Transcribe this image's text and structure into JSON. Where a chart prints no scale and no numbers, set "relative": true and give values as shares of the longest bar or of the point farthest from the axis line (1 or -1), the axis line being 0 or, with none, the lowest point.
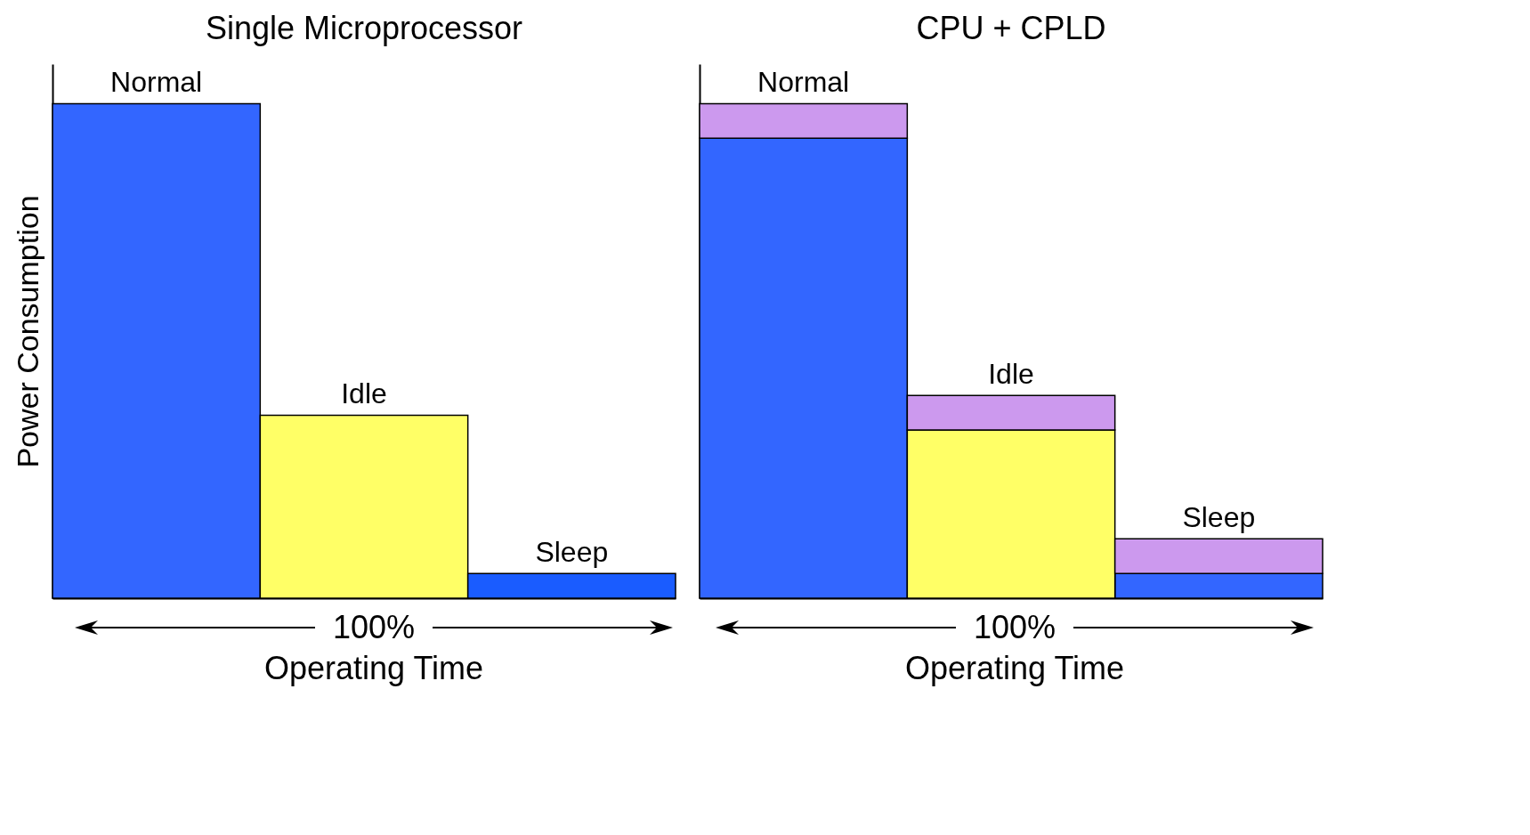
{
  "chart_data": [
    {
      "type": "bar",
      "title": "Single Microprocessor",
      "ylabel": "Power Consumption",
      "xlabel": "Operating Time",
      "relative": true,
      "categories": [
        "Normal",
        "Idle",
        "Sleep"
      ],
      "values": [
        1,
        0.37,
        0.05
      ],
      "colors": [
        "#3366ff",
        "#ffff66",
        "#1a5cff"
      ],
      "annotations": [
        "100%"
      ]
    },
    {
      "type": "bar",
      "title": "CPU + CPLD",
      "xlabel": "Operating Time",
      "relative": true,
      "stacked": true,
      "categories": [
        "Normal",
        "Idle",
        "Sleep"
      ],
      "series": [
        {
          "color": "#3366ff",
          "values": [
            0.93,
            null,
            0.05
          ]
        },
        {
          "color": "#ffff66",
          "values": [
            null,
            0.34,
            null
          ]
        },
        {
          "color": "#cc99ee",
          "values": [
            0.07,
            0.07,
            0.07
          ]
        }
      ],
      "annotations": [
        "100%"
      ]
    }
  ]
}
